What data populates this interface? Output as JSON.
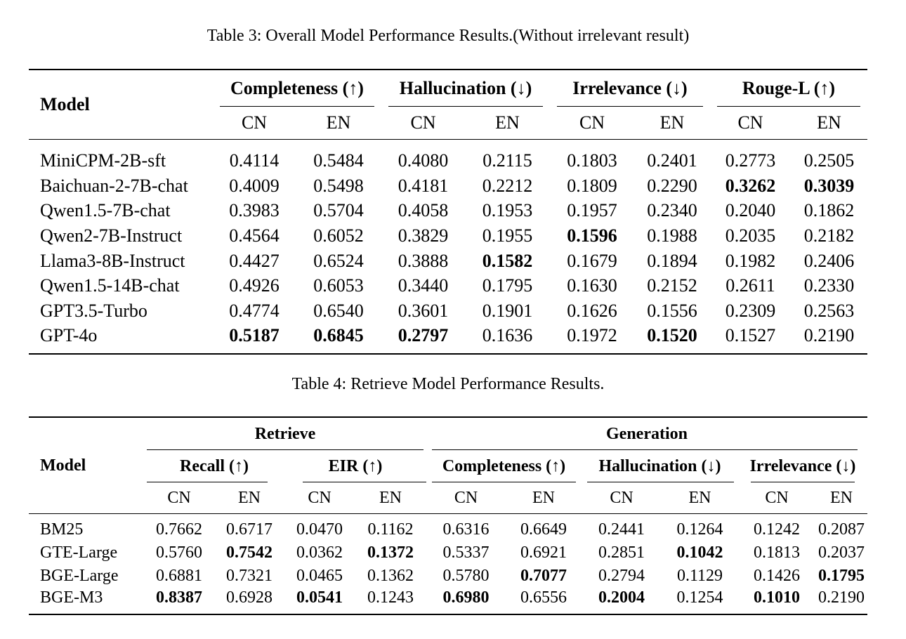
{
  "table3": {
    "caption": "Table 3: Overall Model Performance Results.(Without irrelevant result)",
    "model_header": "Model",
    "groups": [
      "Completeness (↑)",
      "Hallucination (↓)",
      "Irrelevance (↓)",
      "Rouge-L (↑)"
    ],
    "subheaders": [
      "CN",
      "EN",
      "CN",
      "EN",
      "CN",
      "EN",
      "CN",
      "EN"
    ],
    "rows": [
      {
        "model": "MiniCPM-2B-sft",
        "values": [
          "0.4114",
          "0.5484",
          "0.4080",
          "0.2115",
          "0.1803",
          "0.2401",
          "0.2773",
          "0.2505"
        ],
        "bold": []
      },
      {
        "model": "Baichuan-2-7B-chat",
        "values": [
          "0.4009",
          "0.5498",
          "0.4181",
          "0.2212",
          "0.1809",
          "0.2290",
          "0.3262",
          "0.3039"
        ],
        "bold": [
          6,
          7
        ]
      },
      {
        "model": "Qwen1.5-7B-chat",
        "values": [
          "0.3983",
          "0.5704",
          "0.4058",
          "0.1953",
          "0.1957",
          "0.2340",
          "0.2040",
          "0.1862"
        ],
        "bold": []
      },
      {
        "model": "Qwen2-7B-Instruct",
        "values": [
          "0.4564",
          "0.6052",
          "0.3829",
          "0.1955",
          "0.1596",
          "0.1988",
          "0.2035",
          "0.2182"
        ],
        "bold": [
          4
        ]
      },
      {
        "model": "Llama3-8B-Instruct",
        "values": [
          "0.4427",
          "0.6524",
          "0.3888",
          "0.1582",
          "0.1679",
          "0.1894",
          "0.1982",
          "0.2406"
        ],
        "bold": [
          3
        ]
      },
      {
        "model": "Qwen1.5-14B-chat",
        "values": [
          "0.4926",
          "0.6053",
          "0.3440",
          "0.1795",
          "0.1630",
          "0.2152",
          "0.2611",
          "0.2330"
        ],
        "bold": []
      },
      {
        "model": "GPT3.5-Turbo",
        "values": [
          "0.4774",
          "0.6540",
          "0.3601",
          "0.1901",
          "0.1626",
          "0.1556",
          "0.2309",
          "0.2563"
        ],
        "bold": []
      },
      {
        "model": "GPT-4o",
        "values": [
          "0.5187",
          "0.6845",
          "0.2797",
          "0.1636",
          "0.1972",
          "0.1520",
          "0.1527",
          "0.2190"
        ],
        "bold": [
          0,
          1,
          2,
          5
        ]
      }
    ]
  },
  "table4": {
    "caption": "Table 4: Retrieve Model Performance Results.",
    "model_header": "Model",
    "supergroups": [
      "Retrieve",
      "Generation"
    ],
    "groups": [
      "Recall (↑)",
      "EIR (↑)",
      "Completeness (↑)",
      "Hallucination (↓)",
      "Irrelevance (↓)"
    ],
    "subheaders": [
      "CN",
      "EN",
      "CN",
      "EN",
      "CN",
      "EN",
      "CN",
      "EN",
      "CN",
      "EN"
    ],
    "rows": [
      {
        "model": "BM25",
        "values": [
          "0.7662",
          "0.6717",
          "0.0470",
          "0.1162",
          "0.6316",
          "0.6649",
          "0.2441",
          "0.1264",
          "0.1242",
          "0.2087"
        ],
        "bold": []
      },
      {
        "model": "GTE-Large",
        "values": [
          "0.5760",
          "0.7542",
          "0.0362",
          "0.1372",
          "0.5337",
          "0.6921",
          "0.2851",
          "0.1042",
          "0.1813",
          "0.2037"
        ],
        "bold": [
          1,
          3,
          7
        ]
      },
      {
        "model": "BGE-Large",
        "values": [
          "0.6881",
          "0.7321",
          "0.0465",
          "0.1362",
          "0.5780",
          "0.7077",
          "0.2794",
          "0.1129",
          "0.1426",
          "0.1795"
        ],
        "bold": [
          5,
          9
        ]
      },
      {
        "model": "BGE-M3",
        "values": [
          "0.8387",
          "0.6928",
          "0.0541",
          "0.1243",
          "0.6980",
          "0.6556",
          "0.2004",
          "0.1254",
          "0.1010",
          "0.2190"
        ],
        "bold": [
          0,
          2,
          4,
          6,
          8
        ]
      }
    ]
  }
}
